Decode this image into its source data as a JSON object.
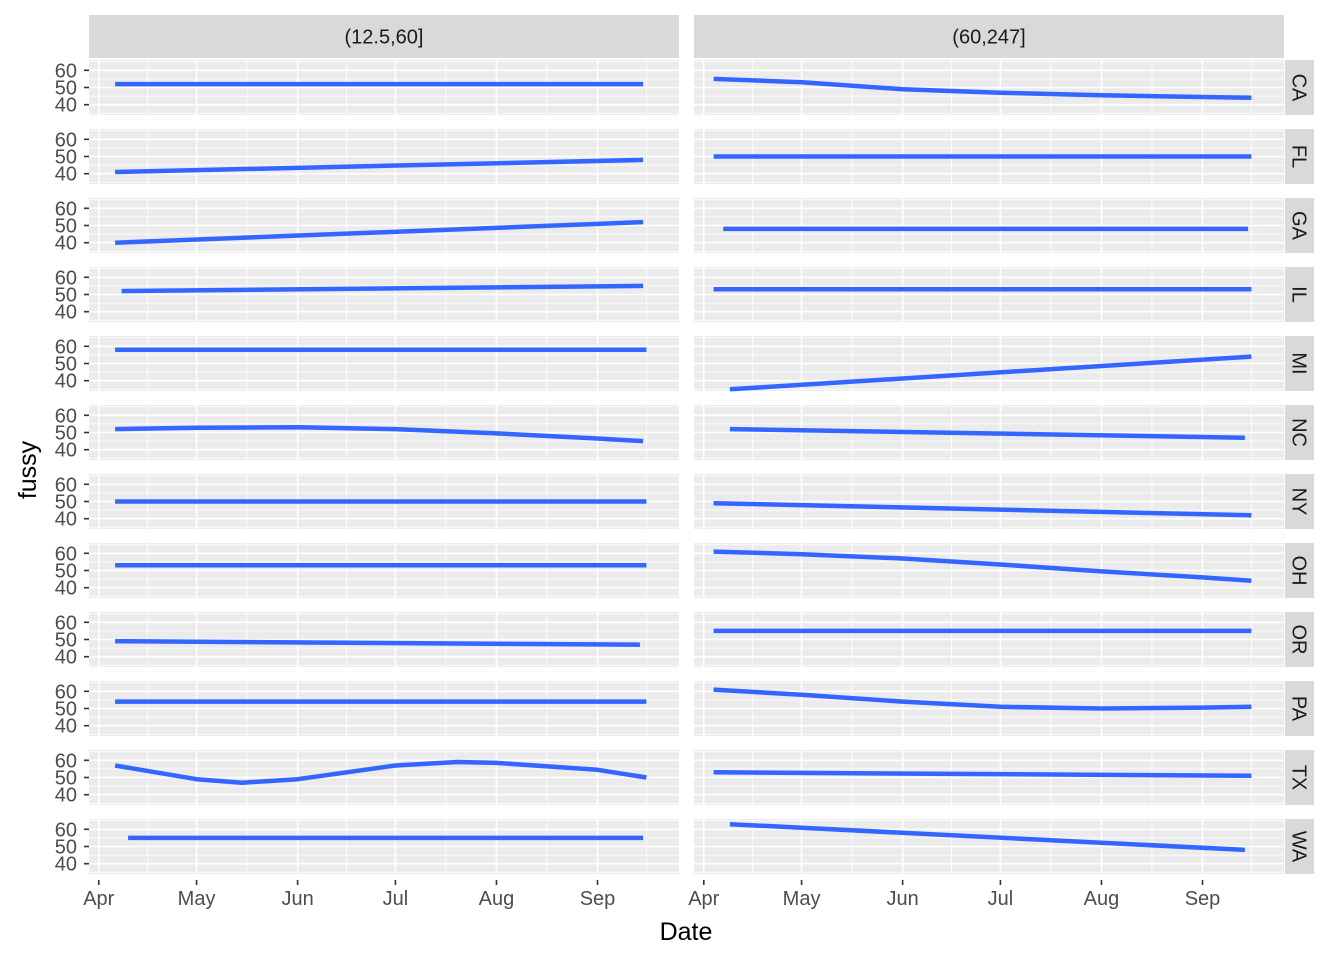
{
  "chart_data": {
    "type": "line",
    "xlabel": "Date",
    "ylabel": "fussy",
    "x_range": [
      "2020-04-01",
      "2020-09-26"
    ],
    "ylim": [
      34,
      66
    ],
    "x_ticks": [
      {
        "date": "2020-04-01",
        "label": "Apr"
      },
      {
        "date": "2020-05-01",
        "label": "May"
      },
      {
        "date": "2020-06-01",
        "label": "Jun"
      },
      {
        "date": "2020-07-01",
        "label": "Jul"
      },
      {
        "date": "2020-08-01",
        "label": "Aug"
      },
      {
        "date": "2020-09-01",
        "label": "Sep"
      }
    ],
    "y_ticks": [
      40,
      50,
      60
    ],
    "columns": [
      "(12.5,60]",
      "(60,247]"
    ],
    "rows": [
      "CA",
      "FL",
      "GA",
      "IL",
      "MI",
      "NC",
      "NY",
      "OH",
      "OR",
      "PA",
      "TX",
      "WA"
    ],
    "grid": true,
    "line_color": "#3366ff",
    "panels": [
      {
        "row": "CA",
        "col": 0,
        "points": [
          [
            "2020-04-06",
            52
          ],
          [
            "2020-09-15",
            52
          ]
        ]
      },
      {
        "row": "CA",
        "col": 1,
        "points": [
          [
            "2020-04-04",
            55
          ],
          [
            "2020-05-01",
            53
          ],
          [
            "2020-06-01",
            49
          ],
          [
            "2020-07-01",
            47
          ],
          [
            "2020-08-01",
            45.5
          ],
          [
            "2020-09-01",
            44.5
          ],
          [
            "2020-09-16",
            44
          ]
        ]
      },
      {
        "row": "FL",
        "col": 0,
        "points": [
          [
            "2020-04-06",
            41
          ],
          [
            "2020-09-15",
            48
          ]
        ]
      },
      {
        "row": "FL",
        "col": 1,
        "points": [
          [
            "2020-04-04",
            50
          ],
          [
            "2020-09-16",
            50
          ]
        ]
      },
      {
        "row": "GA",
        "col": 0,
        "points": [
          [
            "2020-04-06",
            40
          ],
          [
            "2020-09-15",
            52
          ]
        ]
      },
      {
        "row": "GA",
        "col": 1,
        "points": [
          [
            "2020-04-07",
            48
          ],
          [
            "2020-09-15",
            48
          ]
        ]
      },
      {
        "row": "IL",
        "col": 0,
        "points": [
          [
            "2020-04-08",
            52
          ],
          [
            "2020-09-15",
            55
          ]
        ]
      },
      {
        "row": "IL",
        "col": 1,
        "points": [
          [
            "2020-04-04",
            53
          ],
          [
            "2020-09-16",
            53
          ]
        ]
      },
      {
        "row": "MI",
        "col": 0,
        "points": [
          [
            "2020-04-06",
            58
          ],
          [
            "2020-09-16",
            58
          ]
        ]
      },
      {
        "row": "MI",
        "col": 1,
        "points": [
          [
            "2020-04-09",
            35
          ],
          [
            "2020-09-16",
            54
          ]
        ]
      },
      {
        "row": "NC",
        "col": 0,
        "points": [
          [
            "2020-04-06",
            52
          ],
          [
            "2020-05-01",
            52.8
          ],
          [
            "2020-06-01",
            53
          ],
          [
            "2020-07-01",
            52
          ],
          [
            "2020-08-01",
            49.5
          ],
          [
            "2020-09-01",
            46.5
          ],
          [
            "2020-09-15",
            45
          ]
        ]
      },
      {
        "row": "NC",
        "col": 1,
        "points": [
          [
            "2020-04-09",
            52
          ],
          [
            "2020-09-14",
            47
          ]
        ]
      },
      {
        "row": "NY",
        "col": 0,
        "points": [
          [
            "2020-04-06",
            50
          ],
          [
            "2020-09-16",
            50
          ]
        ]
      },
      {
        "row": "NY",
        "col": 1,
        "points": [
          [
            "2020-04-04",
            49
          ],
          [
            "2020-09-16",
            42
          ]
        ]
      },
      {
        "row": "OH",
        "col": 0,
        "points": [
          [
            "2020-04-06",
            53
          ],
          [
            "2020-09-16",
            53
          ]
        ]
      },
      {
        "row": "OH",
        "col": 1,
        "points": [
          [
            "2020-04-04",
            61
          ],
          [
            "2020-05-01",
            59.5
          ],
          [
            "2020-06-01",
            57
          ],
          [
            "2020-07-01",
            53.5
          ],
          [
            "2020-08-01",
            49.5
          ],
          [
            "2020-09-01",
            46
          ],
          [
            "2020-09-16",
            44
          ]
        ]
      },
      {
        "row": "OR",
        "col": 0,
        "points": [
          [
            "2020-04-06",
            49
          ],
          [
            "2020-09-14",
            47
          ]
        ]
      },
      {
        "row": "OR",
        "col": 1,
        "points": [
          [
            "2020-04-04",
            55
          ],
          [
            "2020-09-16",
            55
          ]
        ]
      },
      {
        "row": "PA",
        "col": 0,
        "points": [
          [
            "2020-04-06",
            54
          ],
          [
            "2020-09-16",
            54
          ]
        ]
      },
      {
        "row": "PA",
        "col": 1,
        "points": [
          [
            "2020-04-04",
            61
          ],
          [
            "2020-05-01",
            58
          ],
          [
            "2020-06-01",
            54
          ],
          [
            "2020-07-01",
            51
          ],
          [
            "2020-08-01",
            50
          ],
          [
            "2020-09-01",
            50.5
          ],
          [
            "2020-09-16",
            51
          ]
        ]
      },
      {
        "row": "TX",
        "col": 0,
        "points": [
          [
            "2020-04-06",
            57
          ],
          [
            "2020-05-01",
            49
          ],
          [
            "2020-05-15",
            47
          ],
          [
            "2020-06-01",
            49
          ],
          [
            "2020-07-01",
            57
          ],
          [
            "2020-07-20",
            59
          ],
          [
            "2020-08-01",
            58.5
          ],
          [
            "2020-09-01",
            54.5
          ],
          [
            "2020-09-16",
            50
          ]
        ]
      },
      {
        "row": "TX",
        "col": 1,
        "points": [
          [
            "2020-04-04",
            53
          ],
          [
            "2020-09-16",
            51
          ]
        ]
      },
      {
        "row": "WA",
        "col": 0,
        "points": [
          [
            "2020-04-10",
            55
          ],
          [
            "2020-09-15",
            55
          ]
        ]
      },
      {
        "row": "WA",
        "col": 1,
        "points": [
          [
            "2020-04-09",
            63
          ],
          [
            "2020-09-14",
            48
          ]
        ]
      }
    ]
  }
}
